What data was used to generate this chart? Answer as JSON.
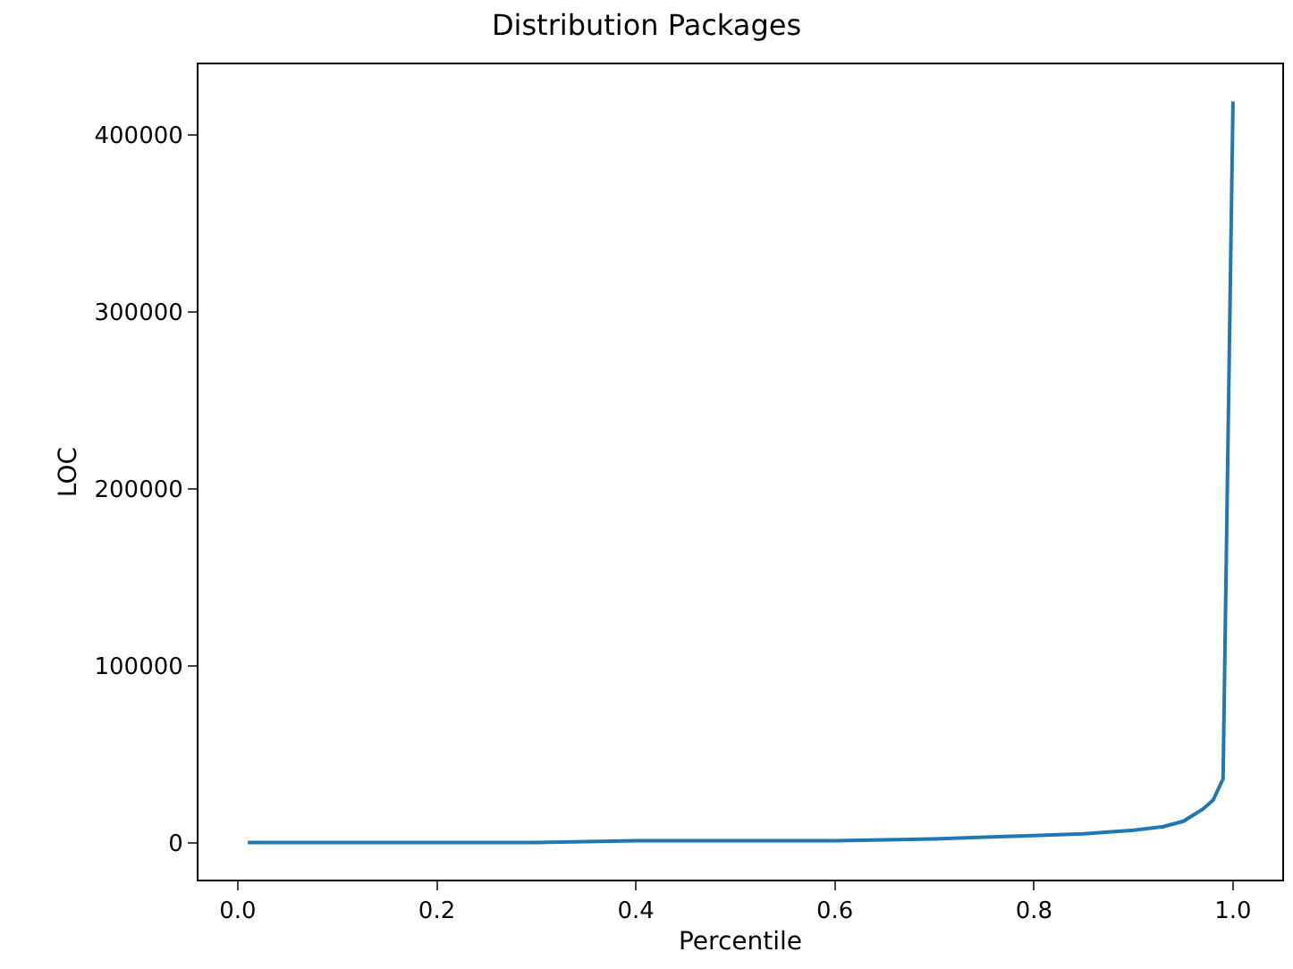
{
  "chart_data": {
    "type": "line",
    "title": "Distribution Packages",
    "xlabel": "Percentile",
    "ylabel": "LOC",
    "x": [
      0.01,
      0.1,
      0.2,
      0.3,
      0.4,
      0.5,
      0.6,
      0.7,
      0.75,
      0.8,
      0.85,
      0.9,
      0.93,
      0.95,
      0.97,
      0.98,
      0.99,
      1.0
    ],
    "series": [
      {
        "color": "#1f77b4",
        "values": [
          0,
          0,
          0,
          0,
          1000,
          1000,
          1000,
          2000,
          3000,
          4000,
          5000,
          7000,
          9000,
          12000,
          19000,
          24000,
          36000,
          419000
        ]
      }
    ],
    "xlim": [
      -0.0395,
      1.0495
    ],
    "xticks": [
      {
        "value": 0,
        "label": "0.0"
      },
      0.2,
      0.4,
      0.6,
      0.8,
      {
        "value": 1,
        "label": "1.0"
      }
    ],
    "ylim": [
      -20950,
      440000
    ],
    "yticks": [
      0,
      100000,
      200000,
      300000,
      400000
    ]
  }
}
